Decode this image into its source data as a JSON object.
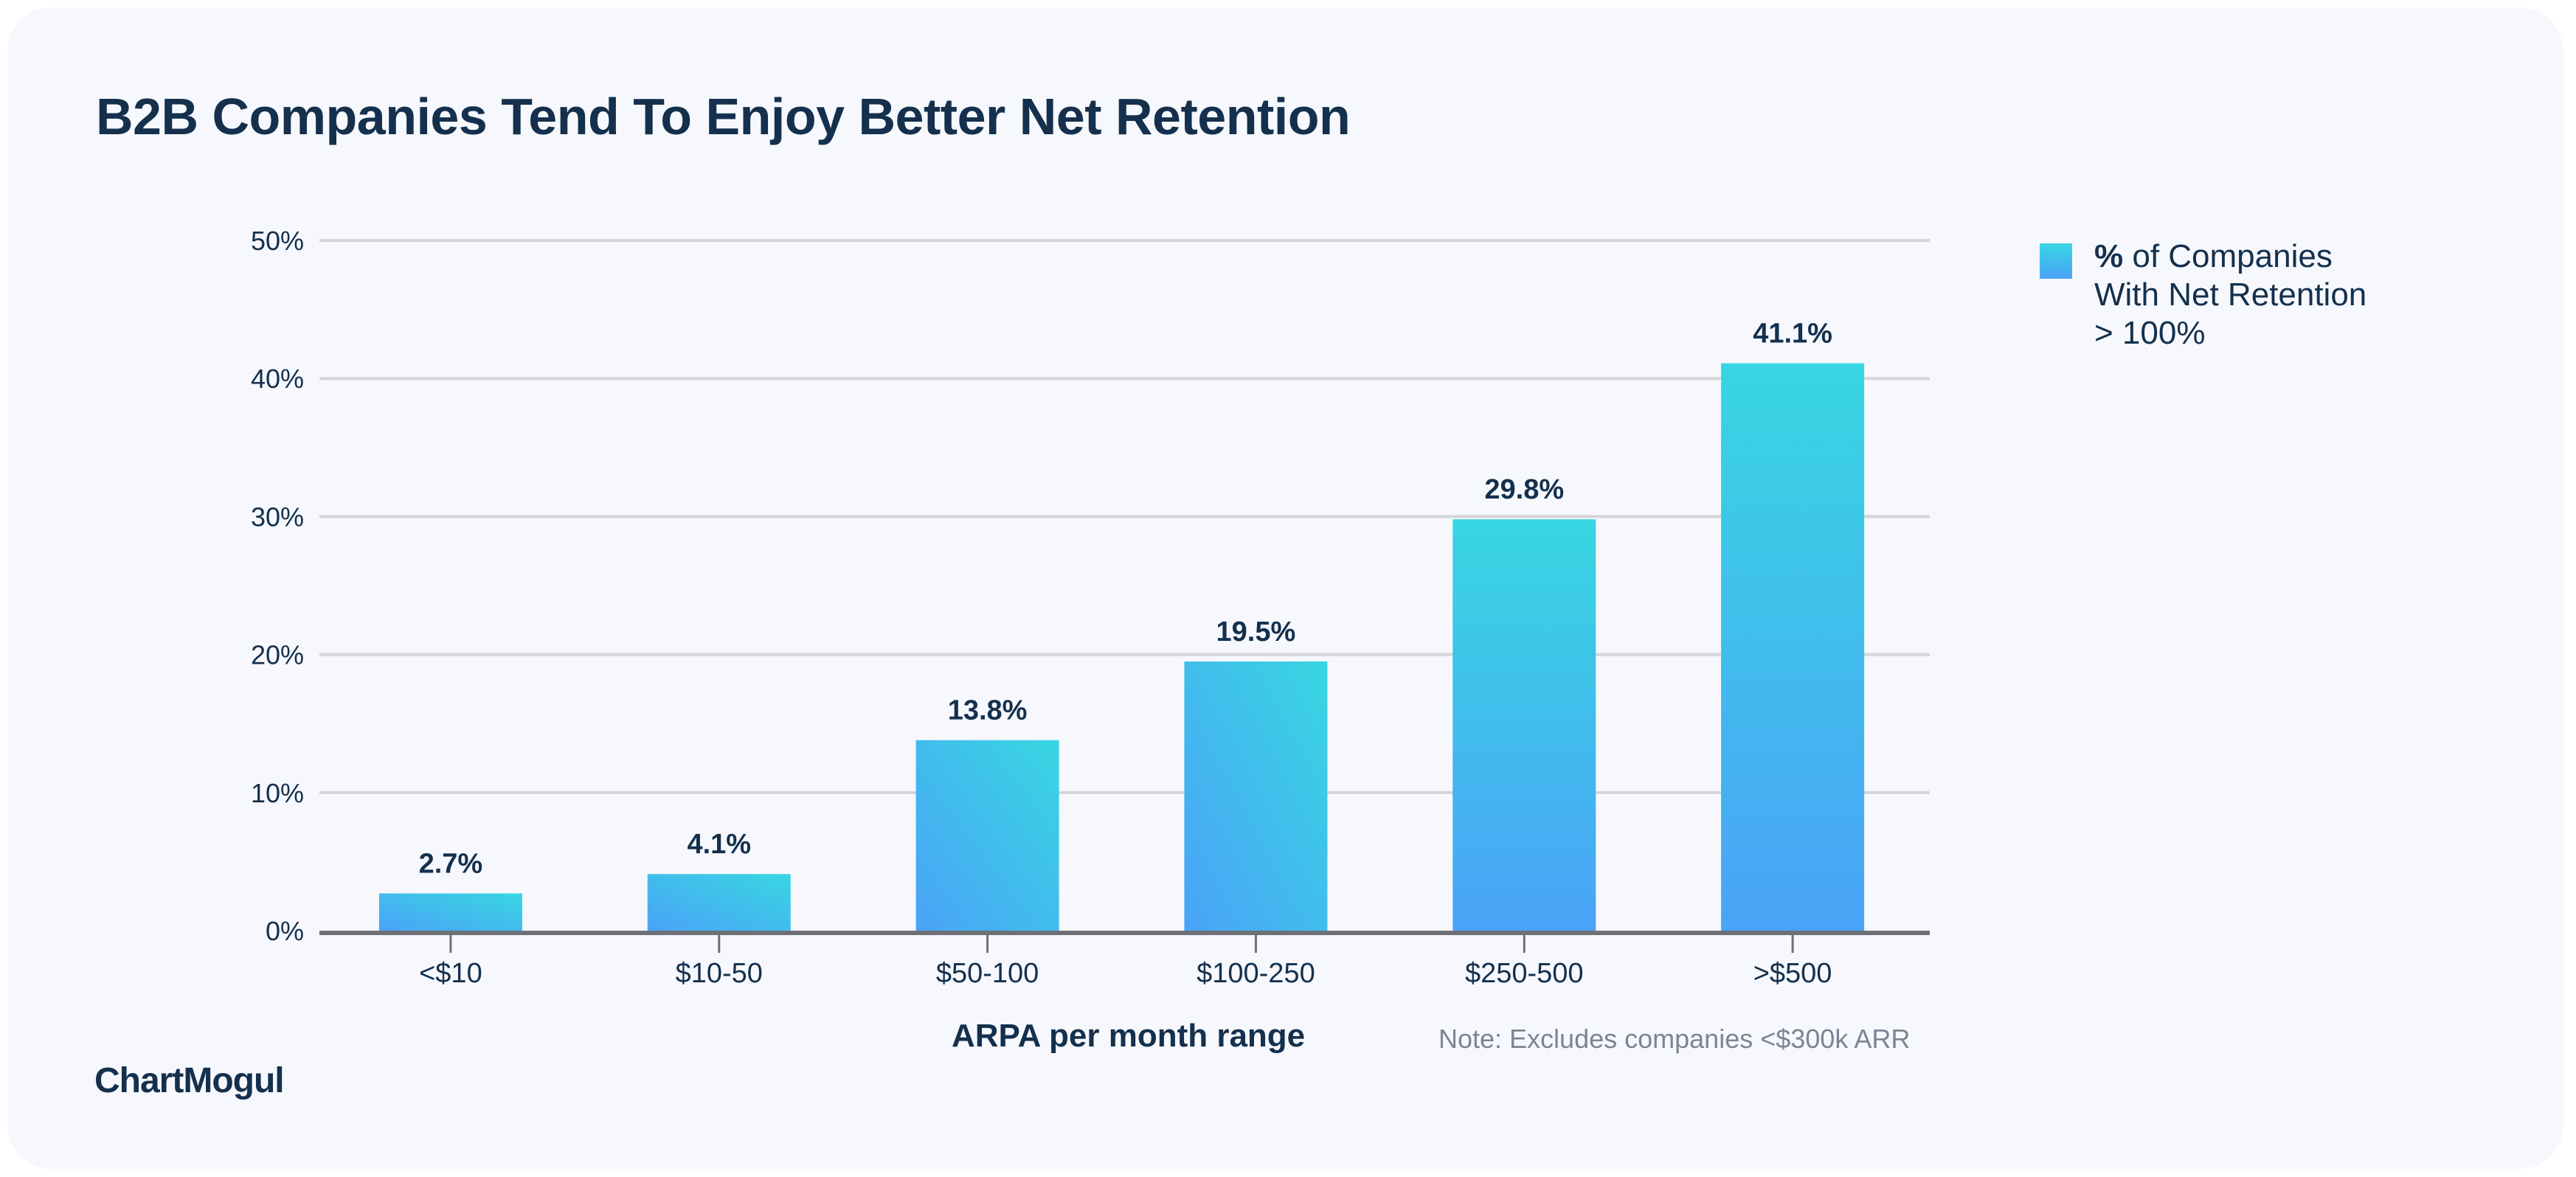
{
  "page": {
    "title": "B2B Companies Tend To Enjoy Better Net Retention",
    "brand": "ChartMogul",
    "note": "Note: Excludes companies <$300k ARR",
    "colors": {
      "background": "#f6f8fd",
      "text": "#14304d",
      "gridline": "#d3d5d9",
      "axis": "#6e7075",
      "bar_gradient_low": "#4aa3f7",
      "bar_gradient_high": "#38d6e2"
    }
  },
  "legend": {
    "symbol": "%",
    "line1": "of Companies",
    "line2": "With Net Retention",
    "line3": "> 100%"
  },
  "chart_data": {
    "type": "bar",
    "title": "B2B Companies Tend To Enjoy Better Net Retention",
    "xlabel": "ARPA per month range",
    "ylabel": "",
    "categories": [
      "<$10",
      "$10-50",
      "$50-100",
      "$100-250",
      "$250-500",
      ">$500"
    ],
    "series": [
      {
        "name": "% of Companies With Net Retention > 100%",
        "values": [
          2.7,
          4.1,
          13.8,
          19.5,
          29.8,
          41.1
        ],
        "labels": [
          "2.7%",
          "4.1%",
          "13.8%",
          "19.5%",
          "29.8%",
          "41.1%"
        ]
      }
    ],
    "ylim": [
      0,
      50
    ],
    "yticks": [
      0,
      10,
      20,
      30,
      40,
      50
    ],
    "ytick_labels": [
      "0%",
      "10%",
      "20%",
      "30%",
      "40%",
      "50%"
    ],
    "grid": true,
    "legend_position": "top-right",
    "annotation": "Note: Excludes companies <$300k ARR"
  }
}
